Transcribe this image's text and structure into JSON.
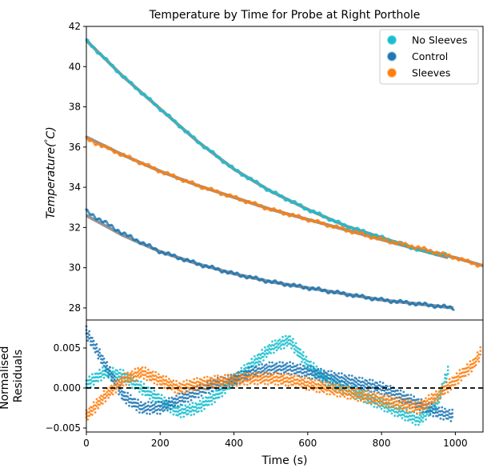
{
  "chart_data": [
    {
      "type": "scatter",
      "title": "Temperature by Time for Probe at Right Porthole",
      "xlabel": "",
      "ylabel": "Temperature(°C)",
      "ylabel_parts": {
        "main": "Temperature(",
        "unit": "°",
        "tail": "C)"
      },
      "xlim": [
        0,
        1075
      ],
      "ylim": [
        27.4,
        42
      ],
      "yticks": [
        28,
        30,
        32,
        34,
        36,
        38,
        40,
        42
      ],
      "ytick_labels": [
        "28",
        "30",
        "32",
        "34",
        "36",
        "38",
        "40",
        "42"
      ],
      "grid": false,
      "legend_position": "top-right",
      "series": [
        {
          "name": "No Sleeves",
          "color": "#17becf",
          "x": [
            0,
            100,
            200,
            300,
            400,
            500,
            600,
            700,
            800,
            900,
            980
          ],
          "y": [
            41.3,
            39.5,
            37.9,
            36.3,
            34.9,
            33.8,
            32.9,
            32.1,
            31.5,
            30.9,
            30.6
          ]
        },
        {
          "name": "Control",
          "color": "#1f77b4",
          "x": [
            0,
            100,
            200,
            300,
            400,
            500,
            600,
            700,
            800,
            900,
            995
          ],
          "y": [
            32.8,
            31.7,
            30.8,
            30.2,
            29.7,
            29.3,
            29.0,
            28.7,
            28.4,
            28.2,
            28.0
          ]
        },
        {
          "name": "Sleeves",
          "color": "#ff7f0e",
          "x": [
            0,
            100,
            200,
            300,
            400,
            500,
            600,
            700,
            800,
            900,
            1000,
            1070
          ],
          "y": [
            36.4,
            35.6,
            34.8,
            34.1,
            33.5,
            32.9,
            32.4,
            31.9,
            31.4,
            31.0,
            30.5,
            30.1
          ]
        }
      ],
      "fits": [
        {
          "color": "#888888",
          "x": [
            0,
            100,
            200,
            300,
            400,
            500,
            600,
            700,
            800,
            900,
            980
          ],
          "y": [
            41.3,
            39.5,
            37.9,
            36.3,
            34.9,
            33.8,
            32.9,
            32.1,
            31.5,
            30.9,
            30.5
          ]
        },
        {
          "color": "#888888",
          "x": [
            0,
            100,
            200,
            300,
            400,
            500,
            600,
            700,
            800,
            900,
            995
          ],
          "y": [
            32.6,
            31.6,
            30.8,
            30.2,
            29.7,
            29.3,
            29.0,
            28.7,
            28.4,
            28.2,
            28.0
          ]
        },
        {
          "color": "#888888",
          "x": [
            0,
            100,
            200,
            300,
            400,
            500,
            600,
            700,
            800,
            900,
            1000,
            1075
          ],
          "y": [
            36.5,
            35.6,
            34.8,
            34.1,
            33.5,
            32.9,
            32.4,
            31.9,
            31.4,
            30.9,
            30.5,
            30.1
          ]
        }
      ]
    },
    {
      "type": "scatter",
      "title": "",
      "xlabel": "Time (s)",
      "ylabel": "Normalised\nResiduals",
      "ylabel_lines": [
        "Normalised",
        "Residuals"
      ],
      "xlim": [
        0,
        1075
      ],
      "ylim": [
        -0.0055,
        0.0085
      ],
      "xticks": [
        0,
        200,
        400,
        600,
        800,
        1000
      ],
      "xtick_labels": [
        "0",
        "200",
        "400",
        "600",
        "800",
        "1000"
      ],
      "yticks": [
        -0.005,
        0.0,
        0.005
      ],
      "ytick_labels": [
        "−0.005",
        "0.000",
        "0.005"
      ],
      "reference_line": {
        "y": 0.0,
        "style": "dashed",
        "color": "#000000"
      },
      "grid": false,
      "series": [
        {
          "name": "No Sleeves",
          "color": "#17becf",
          "x": [
            0,
            50,
            100,
            150,
            200,
            250,
            300,
            350,
            400,
            450,
            500,
            550,
            600,
            650,
            700,
            750,
            800,
            850,
            900,
            950,
            980
          ],
          "y": [
            0.0005,
            0.002,
            0.0015,
            0.0,
            -0.0015,
            -0.003,
            -0.0025,
            -0.001,
            0.001,
            0.003,
            0.005,
            0.006,
            0.003,
            0.001,
            0.0,
            -0.001,
            -0.002,
            -0.003,
            -0.004,
            -0.002,
            0.002
          ]
        },
        {
          "name": "Control",
          "color": "#1f77b4",
          "x": [
            0,
            50,
            100,
            150,
            200,
            250,
            300,
            350,
            400,
            450,
            500,
            550,
            600,
            650,
            700,
            750,
            800,
            850,
            900,
            950,
            995
          ],
          "y": [
            0.007,
            0.003,
            -0.001,
            -0.0025,
            -0.0025,
            -0.0015,
            -0.0005,
            0.0005,
            0.001,
            0.002,
            0.0025,
            0.0025,
            0.002,
            0.0015,
            0.001,
            0.0005,
            0.0,
            -0.001,
            -0.002,
            -0.003,
            -0.0035
          ]
        },
        {
          "name": "Sleeves",
          "color": "#ff7f0e",
          "x": [
            0,
            50,
            100,
            150,
            200,
            250,
            300,
            350,
            400,
            450,
            500,
            550,
            600,
            650,
            700,
            750,
            800,
            850,
            900,
            950,
            1000,
            1050,
            1070
          ],
          "y": [
            -0.0035,
            -0.001,
            0.001,
            0.002,
            0.001,
            0.0,
            0.0005,
            0.0008,
            0.001,
            0.0012,
            0.0012,
            0.001,
            0.0005,
            0.0,
            -0.0005,
            -0.001,
            -0.0015,
            -0.002,
            -0.0025,
            -0.001,
            0.001,
            0.003,
            0.0045
          ]
        }
      ]
    }
  ]
}
